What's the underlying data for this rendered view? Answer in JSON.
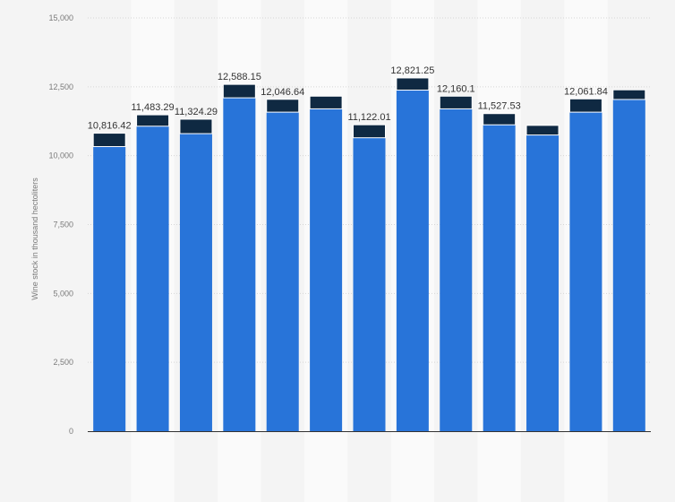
{
  "colors": {
    "background": "#f4f4f4",
    "band": "#fafafa",
    "gridline": "#d6d6d6",
    "series_main": "#2874d9",
    "series_top": "#0f2942",
    "axis_line": "#333333"
  },
  "chart_data": {
    "type": "bar",
    "stacked": true,
    "ylabel": "Wine stock in thousand hectoliters",
    "ylim": [
      0,
      15000
    ],
    "yticks": [
      0,
      2500,
      5000,
      7500,
      10000,
      12500,
      15000
    ],
    "ytick_labels": [
      "0",
      "2,500",
      "5,000",
      "7,500",
      "10,000",
      "12,500",
      "15,000"
    ],
    "grid": true,
    "legend": "none",
    "series": [
      {
        "values": [
          10330,
          11070,
          10800,
          12100,
          11580,
          11700,
          10650,
          12380,
          11700,
          11120,
          10750,
          11580,
          12040
        ]
      },
      {
        "values": [
          486.42,
          413.29,
          524.29,
          488.15,
          466.64,
          460,
          472.01,
          441.25,
          460.1,
          407.53,
          350,
          481.84,
          350
        ]
      }
    ],
    "totals": [
      10816.42,
      11483.29,
      11324.29,
      12588.15,
      12046.64,
      12160,
      11122.01,
      12821.25,
      12160.1,
      11527.53,
      11100,
      12061.84,
      12390
    ],
    "data_labels": [
      "10,816.42",
      "11,483.29",
      "11,324.29",
      "12,588.15",
      "12,046.64",
      "",
      "11,122.01",
      "12,821.25",
      "12,160.1",
      "11,527.53",
      "",
      "12,061.84",
      ""
    ]
  }
}
